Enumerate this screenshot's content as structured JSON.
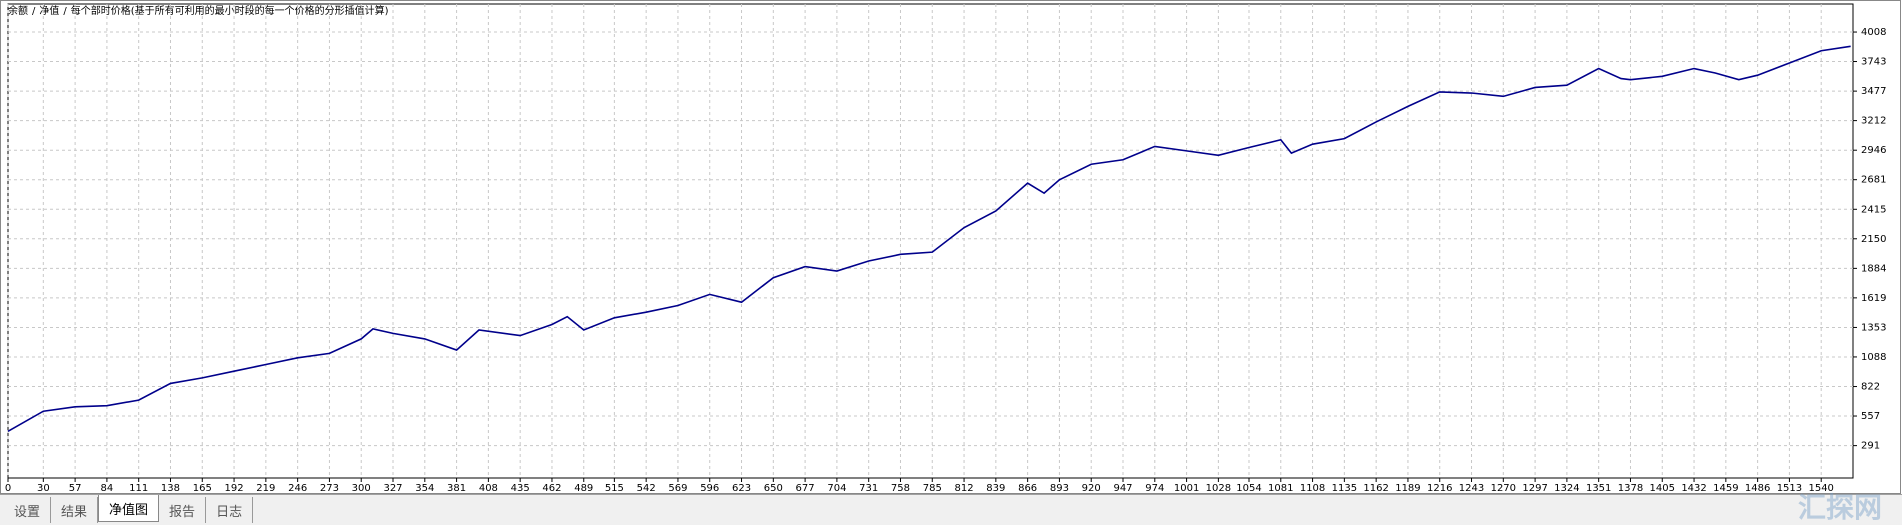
{
  "chart_data": {
    "type": "line",
    "legend": [
      {
        "text": "余额",
        "color": "#0000c8"
      },
      {
        "text": "净值",
        "color": "#00a000"
      }
    ],
    "separator": "/",
    "subtitle": "每个部时价格(基于所有可利用的最小时段的每一个价格的分形插值计算)",
    "x": [
      0,
      30,
      57,
      84,
      111,
      138,
      165,
      192,
      219,
      246,
      273,
      300,
      310,
      327,
      354,
      381,
      400,
      435,
      462,
      475,
      489,
      515,
      542,
      569,
      596,
      623,
      650,
      677,
      704,
      731,
      758,
      785,
      812,
      839,
      866,
      880,
      893,
      920,
      947,
      974,
      1001,
      1028,
      1054,
      1081,
      1090,
      1108,
      1135,
      1162,
      1189,
      1216,
      1243,
      1270,
      1297,
      1324,
      1351,
      1370,
      1378,
      1405,
      1432,
      1450,
      1470,
      1486,
      1513,
      1540,
      1565
    ],
    "series": [
      {
        "name": "余额",
        "color": "#00008b",
        "values": [
          420,
          600,
          640,
          650,
          700,
          850,
          900,
          960,
          1020,
          1080,
          1120,
          1250,
          1340,
          1300,
          1250,
          1150,
          1330,
          1280,
          1380,
          1450,
          1330,
          1440,
          1490,
          1550,
          1650,
          1580,
          1800,
          1900,
          1860,
          1950,
          2010,
          2030,
          2250,
          2400,
          2650,
          2560,
          2680,
          2820,
          2860,
          2980,
          2940,
          2900,
          2970,
          3040,
          2920,
          3000,
          3050,
          3200,
          3340,
          3470,
          3460,
          3430,
          3510,
          3530,
          3680,
          3590,
          3580,
          3610,
          3680,
          3640,
          3580,
          3620,
          3730,
          3840,
          3880
        ]
      }
    ],
    "xlim": [
      0,
      1567
    ],
    "ylim": [
      0,
      4260
    ],
    "xticks": [
      0,
      30,
      57,
      84,
      111,
      138,
      165,
      192,
      219,
      246,
      273,
      300,
      327,
      354,
      381,
      408,
      435,
      462,
      489,
      515,
      542,
      569,
      596,
      623,
      650,
      677,
      704,
      731,
      758,
      785,
      812,
      839,
      866,
      893,
      920,
      947,
      974,
      1001,
      1028,
      1054,
      1081,
      1108,
      1135,
      1162,
      1189,
      1216,
      1243,
      1270,
      1297,
      1324,
      1351,
      1378,
      1405,
      1432,
      1459,
      1486,
      1513,
      1540
    ],
    "yticks": [
      291,
      557,
      822,
      1088,
      1353,
      1619,
      1884,
      2150,
      2415,
      2681,
      2946,
      3212,
      3477,
      3743,
      4008
    ],
    "grid": true
  },
  "tabs": [
    "设置",
    "结果",
    "净值图",
    "报告",
    "日志"
  ],
  "active_tab": 2,
  "watermark": "汇探网"
}
